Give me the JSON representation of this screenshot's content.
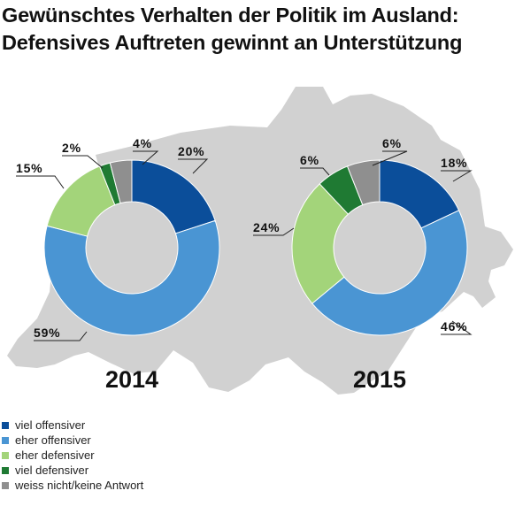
{
  "title_lines": [
    "Gewünschtes Verhalten der Politik im Ausland:",
    "Defensives Auftreten gewinnt an Unterstützung"
  ],
  "chart_data": {
    "type": "pie",
    "variant": "donut",
    "categories": [
      "viel offensiver",
      "eher offensiver",
      "eher defensiver",
      "viel defensiver",
      "weiss nicht/keine Antwort"
    ],
    "colors": [
      "#0b4e9a",
      "#4a95d3",
      "#a3d47a",
      "#1f7a33",
      "#8f8f8f"
    ],
    "series": [
      {
        "name": "2014",
        "values": [
          20,
          59,
          15,
          2,
          4
        ],
        "labels": [
          "20%",
          "59%",
          "15%",
          "2%",
          "4%"
        ]
      },
      {
        "name": "2015",
        "values": [
          18,
          46,
          24,
          6,
          6
        ],
        "labels": [
          "18%",
          "46%",
          "24%",
          "6%",
          "6%"
        ]
      }
    ],
    "background_shape": "map of Switzerland",
    "legend_position": "bottom-left"
  }
}
